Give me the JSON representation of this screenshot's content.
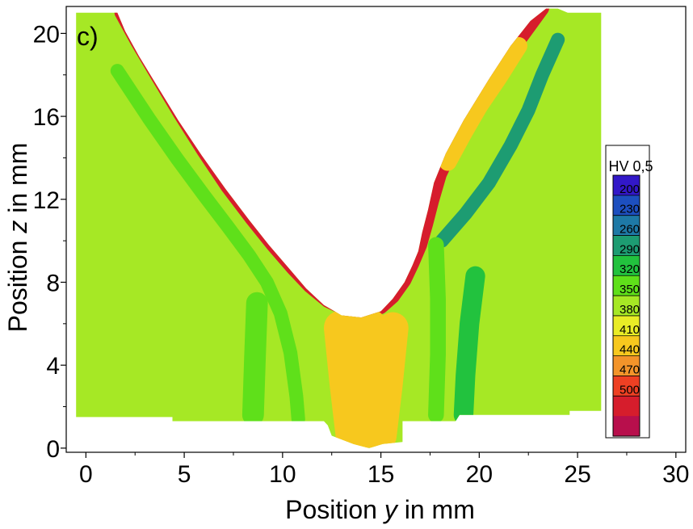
{
  "chart_data": {
    "type": "heatmap",
    "panel_label": "c)",
    "xlabel": {
      "prefix": "Position ",
      "var": "y",
      "suffix": " in mm"
    },
    "ylabel": {
      "prefix": "Position ",
      "var": "z",
      "suffix": " in mm"
    },
    "xlim": [
      -1,
      30.5
    ],
    "ylim": [
      -0.2,
      21.3
    ],
    "x_ticks": [
      0,
      5,
      10,
      15,
      20,
      25,
      30
    ],
    "y_ticks": [
      0,
      4,
      8,
      12,
      16,
      20
    ],
    "colorbar": {
      "title": "HV 0,5",
      "ticks": [
        200,
        230,
        260,
        290,
        320,
        350,
        380,
        410,
        440,
        470,
        500
      ],
      "range": [
        170,
        520
      ],
      "colors": [
        "#3218c8",
        "#1d4fbf",
        "#1e79a6",
        "#1d9c72",
        "#22c23e",
        "#5fe01a",
        "#a6e825",
        "#e9ec26",
        "#f7c81e",
        "#f3942a",
        "#ee4023",
        "#d61d2c",
        "#b80f4c"
      ]
    },
    "specimen": {
      "base_hardness": 350,
      "outer_boundary": [
        [
          -0.5,
          1.5
        ],
        [
          4.4,
          1.5
        ],
        [
          4.4,
          1.3
        ],
        [
          12.1,
          1.3
        ],
        [
          12.3,
          1.1
        ],
        [
          12.5,
          0.6
        ],
        [
          13.6,
          0.2
        ],
        [
          14.4,
          0.0
        ],
        [
          15.1,
          0.2
        ],
        [
          16.1,
          0.3
        ],
        [
          16.1,
          1.3
        ],
        [
          18.8,
          1.3
        ],
        [
          19.0,
          1.6
        ],
        [
          24.6,
          1.6
        ],
        [
          24.6,
          1.8
        ],
        [
          26.2,
          1.8
        ],
        [
          26.2,
          21.0
        ],
        [
          25.2,
          21.0
        ],
        [
          24.5,
          21.0
        ],
        [
          24.0,
          21.2
        ],
        [
          23.4,
          21.2
        ],
        [
          22.6,
          20.6
        ],
        [
          21.6,
          19.4
        ],
        [
          20.5,
          17.8
        ],
        [
          19.2,
          15.8
        ],
        [
          18.3,
          14.2
        ],
        [
          17.7,
          12.8
        ],
        [
          17.4,
          11.5
        ],
        [
          17.1,
          10.4
        ],
        [
          16.9,
          9.5
        ],
        [
          16.6,
          8.8
        ],
        [
          16.2,
          8.0
        ],
        [
          15.6,
          7.2
        ],
        [
          15.0,
          6.6
        ],
        [
          14.0,
          6.3
        ],
        [
          13.0,
          6.4
        ],
        [
          12.1,
          6.9
        ],
        [
          11.2,
          7.7
        ],
        [
          10.3,
          8.7
        ],
        [
          9.3,
          9.8
        ],
        [
          8.3,
          11.0
        ],
        [
          7.1,
          12.5
        ],
        [
          5.9,
          14.1
        ],
        [
          4.7,
          15.8
        ],
        [
          3.6,
          17.5
        ],
        [
          2.7,
          18.9
        ],
        [
          2.0,
          20.1
        ],
        [
          1.6,
          21.0
        ],
        [
          -0.5,
          21.0
        ]
      ],
      "features": [
        {
          "name": "left-fusion-line",
          "hardness": 475,
          "width_mm": 0.7,
          "path": [
            [
              1.8,
              21.0
            ],
            [
              2.6,
              19.6
            ],
            [
              3.6,
              18.0
            ],
            [
              4.8,
              16.1
            ],
            [
              6.0,
              14.3
            ],
            [
              7.2,
              12.6
            ],
            [
              8.4,
              11.1
            ],
            [
              9.5,
              9.8
            ],
            [
              10.5,
              8.7
            ],
            [
              11.4,
              7.8
            ],
            [
              12.3,
              7.1
            ],
            [
              13.2,
              6.7
            ],
            [
              14.1,
              6.5
            ],
            [
              15.0,
              6.8
            ],
            [
              15.6,
              7.3
            ],
            [
              16.2,
              8.1
            ],
            [
              16.6,
              8.9
            ],
            [
              17.0,
              9.8
            ],
            [
              17.3,
              10.8
            ],
            [
              17.6,
              11.9
            ],
            [
              18.0,
              13.2
            ],
            [
              18.7,
              14.6
            ],
            [
              19.6,
              16.2
            ],
            [
              20.8,
              18.0
            ],
            [
              21.9,
              19.5
            ],
            [
              23.2,
              21.2
            ]
          ]
        },
        {
          "name": "left-haz-band",
          "hardness": 305,
          "width_mm": 0.7,
          "path": [
            [
              1.6,
              18.2
            ],
            [
              3.2,
              15.9
            ],
            [
              4.6,
              14.0
            ],
            [
              6.0,
              12.2
            ],
            [
              7.2,
              10.7
            ],
            [
              8.3,
              9.3
            ],
            [
              9.2,
              8.0
            ],
            [
              9.9,
              6.5
            ],
            [
              10.4,
              4.6
            ],
            [
              10.7,
              2.5
            ],
            [
              10.8,
              1.4
            ]
          ]
        },
        {
          "name": "left-haz-inner",
          "hardness": 330,
          "width_mm": 1.1,
          "path": [
            [
              8.7,
              7.0
            ],
            [
              8.6,
              4.5
            ],
            [
              8.5,
              1.6
            ]
          ]
        },
        {
          "name": "root-pass",
          "hardness": 405,
          "width_mm": 2.5,
          "path": [
            [
              14.2,
              5.6
            ],
            [
              14.2,
              3.5
            ],
            [
              14.3,
              1.2
            ]
          ]
        },
        {
          "name": "root-pass-edge",
          "hardness": 395,
          "width_mm": 1.8,
          "path": [
            [
              13.0,
              5.8
            ],
            [
              13.3,
              3.0
            ],
            [
              13.6,
              0.6
            ]
          ]
        },
        {
          "name": "root-pass-edge-2",
          "hardness": 395,
          "width_mm": 1.6,
          "path": [
            [
              15.6,
              5.8
            ],
            [
              15.3,
              3.0
            ],
            [
              15.0,
              0.6
            ]
          ]
        },
        {
          "name": "right-haz-band",
          "hardness": 290,
          "width_mm": 1.0,
          "path": [
            [
              19.8,
              8.3
            ],
            [
              19.5,
              6.0
            ],
            [
              19.3,
              3.5
            ],
            [
              19.2,
              1.6
            ]
          ]
        },
        {
          "name": "right-haz-upper",
          "hardness": 270,
          "width_mm": 0.7,
          "path": [
            [
              18.1,
              10.0
            ],
            [
              19.3,
              11.3
            ],
            [
              20.5,
              12.8
            ],
            [
              21.6,
              14.6
            ],
            [
              22.5,
              16.3
            ],
            [
              23.2,
              18.0
            ],
            [
              24.0,
              19.7
            ]
          ]
        },
        {
          "name": "right-haz-side",
          "hardness": 310,
          "width_mm": 0.8,
          "path": [
            [
              17.8,
              9.8
            ],
            [
              17.9,
              7.2
            ],
            [
              17.9,
              4.5
            ],
            [
              17.8,
              1.6
            ]
          ]
        },
        {
          "name": "cap-pass",
          "hardness": 395,
          "width_mm": 0.9,
          "path": [
            [
              18.4,
              13.8
            ],
            [
              19.2,
              15.2
            ],
            [
              20.0,
              16.5
            ],
            [
              21.0,
              17.9
            ],
            [
              22.0,
              19.4
            ]
          ]
        }
      ]
    }
  }
}
